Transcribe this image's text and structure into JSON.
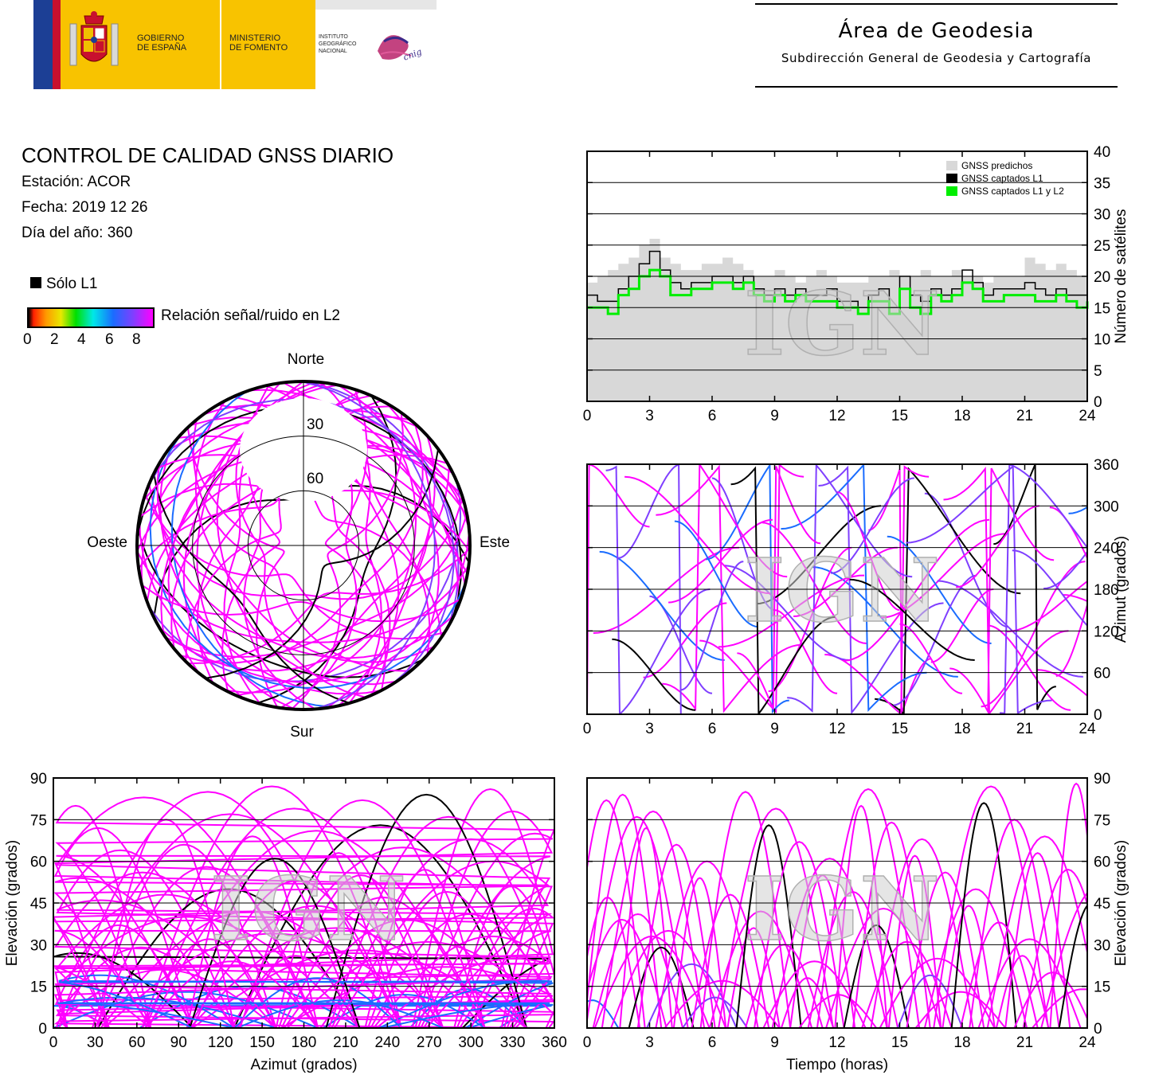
{
  "header": {
    "gov_line1": "GOBIERNO",
    "gov_line2": "DE ESPAÑA",
    "ministry_line1": "MINISTERIO",
    "ministry_line2": "DE FOMENTO",
    "institute_line1": "INSTITUTO",
    "institute_line2": "GEOGRÁFICO",
    "institute_line3": "NACIONAL",
    "cnig_text": "cnig",
    "area_title": "Área de Geodesia",
    "area_subtitle": "Subdirección General de Geodesia y Cartografía"
  },
  "info": {
    "title": "CONTROL DE CALIDAD GNSS DIARIO",
    "station": "Estación: ACOR",
    "date": "Fecha: 2019 12 26",
    "doy": "Día del año: 360"
  },
  "legend": {
    "only_l1": "Sólo L1",
    "snr_label": "Relación señal/ruido en L2",
    "snr_ticks": [
      "0",
      "2",
      "4",
      "6",
      "8"
    ]
  },
  "watermark": "IGN",
  "colors": {
    "l1_only": "#000000",
    "snr_high": "#ff00ff",
    "snr_mid": "#7f3fff",
    "snr_low": "#1a6cff",
    "predicted_fill": "#d8d8d8",
    "captured_l1l2": "#00ee00"
  },
  "chart_data": [
    {
      "type": "area",
      "name": "satellites",
      "xlabel": "",
      "ylabel": "Número de satélites",
      "xlim": [
        0,
        24
      ],
      "ylim": [
        0,
        40
      ],
      "xticks": [
        "0",
        "3",
        "6",
        "9",
        "12",
        "15",
        "18",
        "21",
        "24"
      ],
      "yticks": [
        "0",
        "5",
        "10",
        "15",
        "20",
        "25",
        "30",
        "35",
        "40"
      ],
      "grid": true,
      "legend_position": "top-right",
      "series": [
        {
          "name": "GNSS predichos",
          "color": "#d8d8d8",
          "x": [
            0,
            0.5,
            1,
            1.5,
            2,
            2.5,
            3,
            3.5,
            4,
            4.5,
            5,
            5.5,
            6,
            6.5,
            7,
            7.5,
            8,
            8.5,
            9,
            9.5,
            10,
            10.5,
            11,
            11.5,
            12,
            12.5,
            13,
            13.5,
            14,
            14.5,
            15,
            15.5,
            16,
            16.5,
            17,
            17.5,
            18,
            18.5,
            19,
            19.5,
            20,
            20.5,
            21,
            21.5,
            22,
            22.5,
            23,
            23.5,
            24
          ],
          "values": [
            19,
            20,
            21,
            22,
            23,
            25,
            26,
            23,
            22,
            21,
            21,
            22,
            22,
            23,
            22,
            21,
            20,
            20,
            21,
            20,
            19,
            20,
            21,
            20,
            19,
            19,
            19,
            20,
            20,
            21,
            20,
            20,
            21,
            20,
            20,
            21,
            20,
            20,
            19,
            20,
            20,
            20,
            23,
            22,
            21,
            22,
            21,
            20,
            20
          ]
        },
        {
          "name": "GNSS captados L1",
          "color": "#000000",
          "x": [
            0,
            0.5,
            1,
            1.5,
            2,
            2.5,
            3,
            3.5,
            4,
            4.5,
            5,
            5.5,
            6,
            6.5,
            7,
            7.5,
            8,
            8.5,
            9,
            9.5,
            10,
            10.5,
            11,
            11.5,
            12,
            12.5,
            13,
            13.5,
            14,
            14.5,
            15,
            15.5,
            16,
            16.5,
            17,
            17.5,
            18,
            18.5,
            19,
            19.5,
            20,
            20.5,
            21,
            21.5,
            22,
            22.5,
            23,
            23.5,
            24
          ],
          "values": [
            17,
            16,
            16,
            18,
            20,
            22,
            24,
            21,
            19,
            18,
            19,
            19,
            20,
            20,
            19,
            20,
            18,
            17,
            18,
            17,
            18,
            17,
            17,
            18,
            16,
            16,
            15,
            17,
            18,
            15,
            20,
            17,
            16,
            18,
            17,
            18,
            21,
            19,
            17,
            18,
            18,
            18,
            19,
            18,
            17,
            18,
            17,
            17,
            17
          ]
        },
        {
          "name": "GNSS captados L1 y L2",
          "color": "#00ee00",
          "x": [
            0,
            0.5,
            1,
            1.5,
            2,
            2.5,
            3,
            3.5,
            4,
            4.5,
            5,
            5.5,
            6,
            6.5,
            7,
            7.5,
            8,
            8.5,
            9,
            9.5,
            10,
            10.5,
            11,
            11.5,
            12,
            12.5,
            13,
            13.5,
            14,
            14.5,
            15,
            15.5,
            16,
            16.5,
            17,
            17.5,
            18,
            18.5,
            19,
            19.5,
            20,
            20.5,
            21,
            21.5,
            22,
            22.5,
            23,
            23.5,
            24
          ],
          "values": [
            15,
            15,
            14,
            17,
            18,
            20,
            21,
            20,
            17,
            17,
            18,
            18,
            19,
            19,
            18,
            19,
            17,
            16,
            17,
            16,
            17,
            16,
            16,
            16,
            15,
            15,
            14,
            16,
            16,
            14,
            18,
            15,
            14,
            17,
            16,
            17,
            19,
            18,
            16,
            16,
            17,
            17,
            17,
            16,
            16,
            17,
            16,
            15,
            16
          ]
        }
      ]
    },
    {
      "type": "scatter",
      "name": "azimut_vs_time",
      "xlabel": "",
      "ylabel": "Azimut (grados)",
      "xlim": [
        0,
        24
      ],
      "ylim": [
        0,
        360
      ],
      "xticks": [
        "0",
        "3",
        "6",
        "9",
        "12",
        "15",
        "18",
        "21",
        "24"
      ],
      "yticks": [
        "0",
        "60",
        "120",
        "180",
        "240",
        "300",
        "360"
      ],
      "grid": true
    },
    {
      "type": "scatter",
      "name": "elevation_vs_azimut",
      "xlabel": "Azimut (grados)",
      "ylabel": "Elevación (grados)",
      "xlim": [
        0,
        360
      ],
      "ylim": [
        0,
        90
      ],
      "xticks": [
        "0",
        "30",
        "60",
        "90",
        "120",
        "150",
        "180",
        "210",
        "240",
        "270",
        "300",
        "330",
        "360"
      ],
      "yticks": [
        "0",
        "15",
        "30",
        "45",
        "60",
        "75",
        "90"
      ],
      "grid": true
    },
    {
      "type": "scatter",
      "name": "elevation_vs_time",
      "xlabel": "Tiempo (horas)",
      "ylabel": "Elevación (grados)",
      "xlim": [
        0,
        24
      ],
      "ylim": [
        0,
        90
      ],
      "xticks": [
        "0",
        "3",
        "6",
        "9",
        "12",
        "15",
        "18",
        "21",
        "24"
      ],
      "yticks": [
        "0",
        "15",
        "30",
        "45",
        "60",
        "75",
        "90"
      ],
      "grid": true
    },
    {
      "type": "scatter",
      "name": "skyplot",
      "xlabel": "",
      "ylabel": "",
      "labels": {
        "north": "Norte",
        "south": "Sur",
        "east": "Este",
        "west": "Oeste"
      },
      "rings": [
        "30",
        "60"
      ]
    }
  ]
}
